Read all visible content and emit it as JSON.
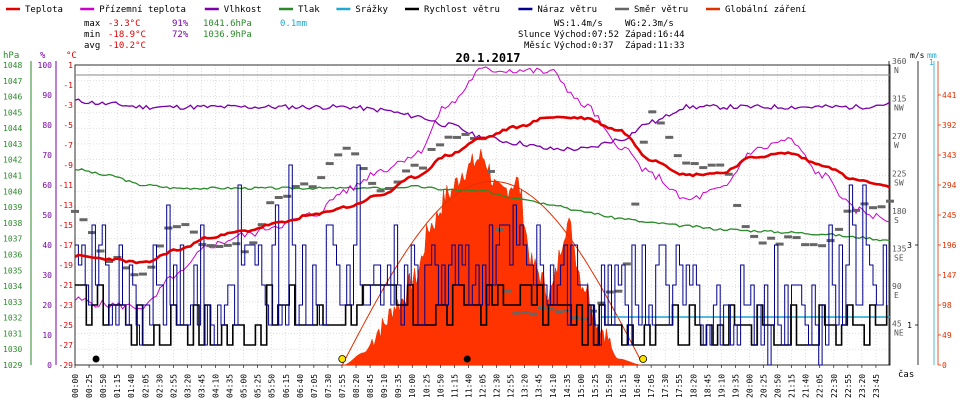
{
  "chart_data": {
    "type": "line",
    "title": "20.1.2017",
    "legend": [
      {
        "label": "Teplota",
        "color": "#e00000"
      },
      {
        "label": "Přízemní teplota",
        "color": "#cc00cc"
      },
      {
        "label": "Vlhkost",
        "color": "#7a00a8"
      },
      {
        "label": "Tlak",
        "color": "#2a8a2a"
      },
      {
        "label": "Srážky",
        "color": "#1fa8d0"
      },
      {
        "label": "Rychlost větru",
        "color": "#000000"
      },
      {
        "label": "Náraz větru",
        "color": "#00008b"
      },
      {
        "label": "Směr větru",
        "color": "#666666"
      },
      {
        "label": "Globální záření",
        "color": "#e03000"
      }
    ],
    "stats": {
      "max_line": [
        "max",
        "-3.3°C",
        "91%",
        "1041.6hPa",
        "0.1mm"
      ],
      "min_line": [
        "min",
        "-18.9°C",
        "72%",
        "1036.9hPa"
      ],
      "avg_line": [
        "avg",
        "-10.2°C"
      ],
      "ws": "WS:1.4m/s",
      "wg": "WG:2.3m/s",
      "sun": [
        "Slunce",
        "Východ:07:52",
        "Západ:16:44"
      ],
      "moon": [
        "Měsíc",
        "Východ:0:37",
        "Západ:11:33"
      ]
    },
    "axes": {
      "hpa": {
        "label": "hPa",
        "ticks": [
          "1048",
          "1047",
          "1046",
          "1045",
          "1044",
          "1043",
          "1042",
          "1041",
          "1040",
          "1039",
          "1038",
          "1037",
          "1036",
          "1035",
          "1034",
          "1033",
          "1032",
          "1031",
          "1030",
          "1029"
        ],
        "range": [
          1029,
          1048
        ]
      },
      "pct": {
        "label": "%",
        "ticks": [
          "100",
          "90",
          "80",
          "70",
          "60",
          "50",
          "40",
          "30",
          "20",
          "10",
          "0"
        ],
        "range": [
          0,
          100
        ]
      },
      "degc": {
        "label": "°C",
        "ticks": [
          "1",
          "-1",
          "-3",
          "-5",
          "-7",
          "-9",
          "-11",
          "-13",
          "-15",
          "-17",
          "-19",
          "-21",
          "-23",
          "-25",
          "-27",
          "-29"
        ],
        "range": [
          -29,
          1
        ]
      },
      "dir": {
        "ticks": [
          [
            "360",
            "N"
          ],
          [
            "315",
            "NW"
          ],
          [
            "270",
            "W"
          ],
          [
            "225",
            "SW"
          ],
          [
            "180",
            "S"
          ],
          [
            "135",
            "SE"
          ],
          [
            "90",
            "E"
          ],
          [
            "45",
            "NE"
          ]
        ],
        "range": [
          0,
          360
        ]
      },
      "ms": {
        "label": "m/s",
        "ticks": [
          "1",
          "3"
        ],
        "range": [
          0,
          7.5
        ]
      },
      "mm": {
        "label": "mm",
        "ticks": [
          "1"
        ]
      },
      "rad": {
        "ticks": [
          "441",
          "392",
          "343",
          "294",
          "245",
          "196",
          "147",
          "98",
          "49",
          "0"
        ],
        "range": [
          0,
          490
        ]
      },
      "time": {
        "label": "čas",
        "ticks": [
          "00:00",
          "00:25",
          "00:50",
          "01:15",
          "01:40",
          "02:05",
          "02:30",
          "02:55",
          "03:20",
          "03:45",
          "04:10",
          "04:35",
          "05:00",
          "05:25",
          "05:50",
          "06:15",
          "06:40",
          "07:05",
          "07:30",
          "07:55",
          "08:20",
          "08:45",
          "09:10",
          "09:35",
          "10:00",
          "10:25",
          "10:50",
          "11:15",
          "11:40",
          "12:05",
          "12:30",
          "12:55",
          "13:20",
          "13:45",
          "14:10",
          "14:35",
          "15:00",
          "15:25",
          "15:50",
          "16:15",
          "16:40",
          "17:05",
          "17:30",
          "17:55",
          "18:20",
          "18:45",
          "19:10",
          "19:35",
          "20:00",
          "20:25",
          "20:50",
          "21:15",
          "21:40",
          "22:05",
          "22:30",
          "22:55",
          "23:20",
          "23:45"
        ]
      }
    },
    "series": [
      {
        "name": "Teplota",
        "unit": "°C",
        "hours": [
          0,
          1,
          2,
          3,
          4,
          5,
          6,
          7,
          8,
          9,
          10,
          11,
          12,
          13,
          14,
          15,
          16,
          17,
          18,
          19,
          20,
          21,
          22,
          23,
          24
        ],
        "values": [
          -18.1,
          -18.4,
          -18.8,
          -17.5,
          -16.2,
          -15.6,
          -14.8,
          -14.0,
          -13.2,
          -12.0,
          -10.2,
          -8.0,
          -6.3,
          -5.2,
          -4.2,
          -4.3,
          -5.5,
          -8.5,
          -10.0,
          -9.8,
          -8.2,
          -7.8,
          -9.0,
          -10.5,
          -11.2
        ]
      },
      {
        "name": "Přízemní teplota",
        "unit": "°C",
        "hours": [
          0,
          1,
          2,
          3,
          4,
          5,
          6,
          7,
          8,
          9,
          10,
          11,
          12,
          13,
          14,
          15,
          16,
          17,
          18,
          19,
          20,
          21,
          22,
          23,
          24
        ],
        "values": [
          -22.5,
          -23.0,
          -23.2,
          -20.0,
          -17.0,
          -16.0,
          -15.0,
          -14.0,
          -11.5,
          -9.5,
          -8.0,
          -3.0,
          0.5,
          0.5,
          0.3,
          -3.0,
          -7.0,
          -10.0,
          -12.5,
          -11.5,
          -7.5,
          -6.5,
          -10.0,
          -13.5,
          -14.5
        ]
      },
      {
        "name": "Vlhkost",
        "unit": "%",
        "hours": [
          0,
          1,
          2,
          3,
          4,
          5,
          6,
          7,
          8,
          9,
          10,
          11,
          12,
          13,
          14,
          15,
          16,
          17,
          18,
          19,
          20,
          21,
          22,
          23,
          24
        ],
        "values": [
          88,
          87,
          86,
          86,
          86,
          86,
          86,
          86,
          86,
          85,
          83,
          80,
          76,
          74,
          72,
          72,
          75,
          81,
          86,
          86,
          86,
          86,
          86,
          86,
          87
        ]
      },
      {
        "name": "Tlak",
        "unit": "hPa",
        "hours": [
          0,
          1,
          2,
          3,
          4,
          5,
          6,
          7,
          8,
          9,
          10,
          11,
          12,
          13,
          14,
          15,
          16,
          17,
          18,
          19,
          20,
          21,
          22,
          23,
          24
        ],
        "values": [
          1041.4,
          1041.0,
          1040.4,
          1040.2,
          1040.2,
          1040.2,
          1040.2,
          1040.2,
          1040.2,
          1040.2,
          1040.3,
          1040.1,
          1040.0,
          1039.6,
          1039.2,
          1038.7,
          1038.3,
          1038.0,
          1037.8,
          1037.6,
          1037.5,
          1037.4,
          1037.3,
          1037.1,
          1036.9
        ]
      },
      {
        "name": "Globální záření",
        "unit": "W/m2",
        "hours": [
          7.9,
          8.5,
          9.0,
          9.5,
          10.0,
          10.5,
          11.0,
          11.5,
          12.0,
          12.5,
          13.0,
          13.5,
          14.0,
          14.5,
          15.0,
          15.5,
          16.0,
          16.7
        ],
        "values": [
          0,
          20,
          60,
          100,
          140,
          230,
          280,
          320,
          340,
          280,
          300,
          160,
          120,
          230,
          130,
          60,
          10,
          0
        ]
      },
      {
        "name": "Rychlost větru",
        "unit": "m/s",
        "hours": [
          0,
          1,
          2,
          3,
          4,
          5,
          6,
          7,
          8,
          9,
          10,
          11,
          12,
          13,
          14,
          15,
          16,
          17,
          18,
          19,
          20,
          21,
          22,
          23,
          24
        ],
        "values": [
          1.5,
          1.5,
          0.8,
          1.2,
          0.8,
          1.0,
          1.5,
          1.2,
          1.5,
          1.8,
          1.2,
          1.5,
          1.5,
          1.8,
          1.5,
          1.0,
          0.8,
          1.2,
          1.2,
          0.9,
          0.9,
          0.9,
          0.9,
          1.0,
          1.2
        ]
      },
      {
        "name": "Náraz větru",
        "unit": "m/s",
        "hours": [
          0,
          1,
          2,
          3,
          4,
          5,
          6,
          7,
          8,
          9,
          10,
          11,
          12,
          13,
          14,
          15,
          16,
          17,
          18,
          19,
          20,
          21,
          22,
          23,
          24
        ],
        "values": [
          2.0,
          2.2,
          1.2,
          1.8,
          1.5,
          2.2,
          2.0,
          1.8,
          2.5,
          2.6,
          2.0,
          2.2,
          2.5,
          2.6,
          2.2,
          1.8,
          1.5,
          2.0,
          1.8,
          1.2,
          1.2,
          1.0,
          1.2,
          2.2,
          2.0
        ]
      },
      {
        "name": "Směr větru",
        "unit": "°",
        "hours": [
          0,
          1,
          2,
          3,
          4,
          5,
          6,
          7,
          8,
          9,
          10,
          11,
          12,
          13,
          14,
          15,
          16,
          17,
          18,
          19,
          20,
          21,
          22,
          23,
          24
        ],
        "values": [
          182,
          128,
          110,
          170,
          145,
          140,
          205,
          215,
          260,
          210,
          235,
          275,
          270,
          60,
          70,
          55,
          90,
          300,
          240,
          240,
          150,
          150,
          140,
          190,
          195
        ]
      }
    ],
    "sun_curve": {
      "start_hour": 7.87,
      "end_hour": 16.73,
      "peak_w": 300
    },
    "sunrise_hour": 7.87,
    "sunset_hour": 16.73,
    "moonrise_hour": 0.62,
    "moonset_hour": 11.55,
    "rain_hour_start": 15.5,
    "rain_mm": 0.1
  }
}
